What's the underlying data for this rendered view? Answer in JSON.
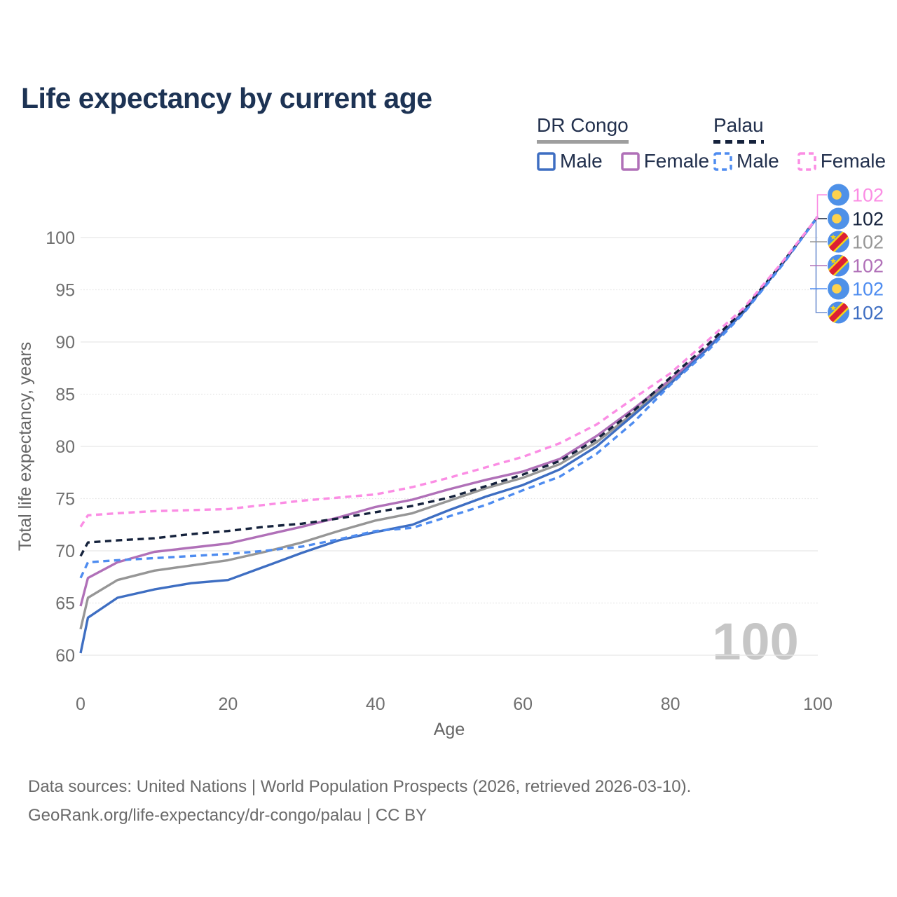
{
  "page": {
    "title": "Life expectancy by current age",
    "watermark": "100"
  },
  "legend": {
    "groups": [
      {
        "title": "DR Congo",
        "line_style": "solid",
        "underline_color": "#9e9e9e",
        "items": [
          {
            "label": "Male",
            "color": "#3e6ec2",
            "dashed": false
          },
          {
            "label": "Female",
            "color": "#b070b8",
            "dashed": false
          }
        ]
      },
      {
        "title": "Palau",
        "line_style": "dashed",
        "underline_color": "#15223c",
        "items": [
          {
            "label": "Male",
            "color": "#4e8cf0",
            "dashed": true
          },
          {
            "label": "Female",
            "color": "#fb8de4",
            "dashed": true
          }
        ]
      }
    ]
  },
  "chart_data": {
    "type": "line",
    "title": "Life expectancy by current age",
    "xlabel": "Age",
    "ylabel": "Total life expectancy, years",
    "xlim": [
      0,
      100
    ],
    "ylim": [
      60,
      103
    ],
    "x_ticks": [
      0,
      20,
      40,
      60,
      80,
      100
    ],
    "y_ticks": [
      60,
      65,
      70,
      75,
      80,
      85,
      90,
      95,
      100
    ],
    "grid": "horizontal, solid every 10, dotted every 5",
    "legend_position": "top-right",
    "x": [
      0,
      1,
      5,
      10,
      15,
      20,
      25,
      30,
      35,
      40,
      45,
      50,
      55,
      60,
      65,
      70,
      75,
      80,
      85,
      90,
      95,
      100
    ],
    "series": [
      {
        "name": "DR Congo — Male",
        "country": "DR Congo",
        "sex": "male",
        "color": "#3e6ec2",
        "dashed": false,
        "values": [
          60.2,
          63.6,
          65.5,
          66.3,
          66.9,
          67.2,
          68.5,
          69.8,
          71.0,
          71.8,
          72.5,
          73.9,
          75.2,
          76.3,
          77.8,
          80.0,
          83.0,
          86.0,
          89.3,
          92.9,
          97.3,
          102
        ]
      },
      {
        "name": "DR Congo — Female",
        "country": "DR Congo",
        "sex": "female",
        "color": "#b070b8",
        "dashed": false,
        "values": [
          64.7,
          67.4,
          68.9,
          69.9,
          70.3,
          70.7,
          71.5,
          72.3,
          73.2,
          74.2,
          74.9,
          75.9,
          76.8,
          77.6,
          78.8,
          81.0,
          83.6,
          86.4,
          89.4,
          93.0,
          97.3,
          102
        ]
      },
      {
        "name": "DR Congo — Both sexes",
        "country": "DR Congo",
        "sex": "both",
        "color": "#969696",
        "dashed": false,
        "values": [
          62.5,
          65.5,
          67.2,
          68.1,
          68.6,
          69.1,
          69.9,
          70.8,
          71.9,
          72.9,
          73.6,
          74.8,
          76.0,
          77.0,
          78.3,
          80.4,
          83.2,
          86.2,
          89.3,
          92.9,
          97.3,
          102
        ]
      },
      {
        "name": "Palau — Male",
        "country": "Palau",
        "sex": "male",
        "color": "#4e8cf0",
        "dashed": true,
        "values": [
          67.4,
          68.9,
          69.1,
          69.3,
          69.5,
          69.7,
          70.0,
          70.4,
          71.1,
          71.9,
          72.2,
          73.3,
          74.4,
          75.8,
          77.1,
          79.3,
          82.3,
          85.9,
          89.1,
          92.8,
          97.2,
          102
        ]
      },
      {
        "name": "Palau — Female",
        "country": "Palau",
        "sex": "female",
        "color": "#fb8de4",
        "dashed": true,
        "values": [
          72.3,
          73.4,
          73.6,
          73.8,
          73.9,
          74.0,
          74.4,
          74.8,
          75.1,
          75.4,
          76.1,
          77.0,
          78.0,
          79.0,
          80.3,
          82.1,
          84.6,
          87.0,
          90.1,
          93.3,
          97.5,
          102
        ]
      },
      {
        "name": "Palau — Both sexes",
        "country": "Palau",
        "sex": "both",
        "color": "#15223c",
        "dashed": true,
        "values": [
          69.5,
          70.8,
          71.0,
          71.2,
          71.6,
          71.9,
          72.3,
          72.6,
          73.1,
          73.7,
          74.3,
          75.1,
          76.2,
          77.3,
          78.6,
          80.7,
          83.4,
          86.6,
          89.7,
          93.1,
          97.4,
          102
        ]
      }
    ],
    "end_labels": [
      {
        "value": "102",
        "series": "Palau — Female",
        "flag": "palau",
        "color": "#fb8de4"
      },
      {
        "value": "102",
        "series": "Palau — Both sexes",
        "flag": "palau",
        "color": "#15223c"
      },
      {
        "value": "102",
        "series": "DR Congo — Both sexes",
        "flag": "dr-congo",
        "color": "#969696"
      },
      {
        "value": "102",
        "series": "DR Congo — Female",
        "flag": "dr-congo",
        "color": "#b070b8"
      },
      {
        "value": "102",
        "series": "Palau — Male",
        "flag": "palau",
        "color": "#4e8cf0"
      },
      {
        "value": "102",
        "series": "DR Congo — Male",
        "flag": "dr-congo",
        "color": "#3e6ec2"
      }
    ]
  },
  "palette": {
    "title_text": "#1d3354",
    "axis_text": "#6f6f6f",
    "grid_solid": "#e8e8e8",
    "grid_dotted": "#e3e3e3",
    "watermark": "#c6c6c6",
    "leader_blue": "#6e8fd0",
    "palau_flag_blue": "#4e91e8",
    "palau_flag_yellow": "#fdd24e",
    "drc_flag_blue": "#4d8de8",
    "drc_flag_red": "#dd1f34",
    "drc_flag_yellow": "#f5d216"
  },
  "footer": {
    "line1": "Data sources: United Nations | World Population Prospects (2026, retrieved 2026-03-10).",
    "line2": "GeoRank.org/life-expectancy/dr-congo/palau | CC BY"
  }
}
